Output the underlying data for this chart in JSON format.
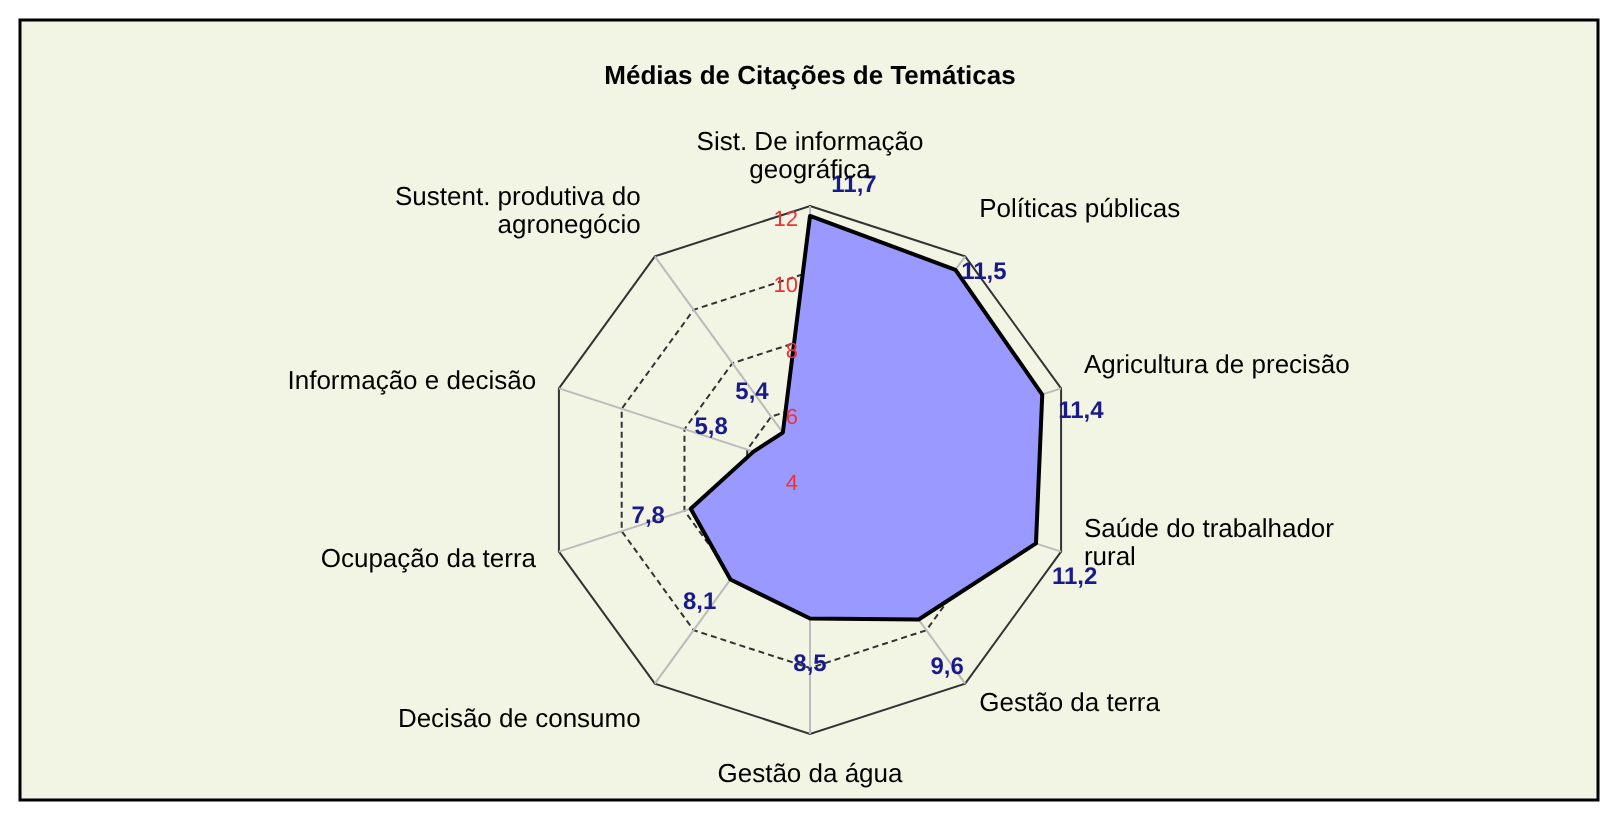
{
  "chart_data": {
    "type": "radar",
    "title": "Médias de Citações de Temáticas",
    "categories": [
      "Sist. De informação\ngeográfica",
      "Políticas públicas",
      "Agricultura de precisão",
      "Saúde do trabalhador\nrural",
      "Gestão da terra",
      "Gestão da água",
      "Decisão de consumo",
      "Ocupação da terra",
      "Informação e decisão",
      "Sustent. produtiva do\nagronegócio"
    ],
    "series": [
      {
        "color": "#9999ff",
        "values": [
          11.7,
          11.5,
          11.4,
          11.2,
          9.6,
          8.5,
          8.1,
          7.8,
          5.8,
          5.4
        ],
        "value_labels": [
          "11,7",
          "11,5",
          "11,4",
          "11,2",
          "9,6",
          "8,5",
          "8,1",
          "7,8",
          "5,8",
          "5,4"
        ]
      }
    ],
    "ylim": [
      4,
      12
    ],
    "yticks": [
      4,
      6,
      8,
      10,
      12
    ],
    "grid": true
  }
}
